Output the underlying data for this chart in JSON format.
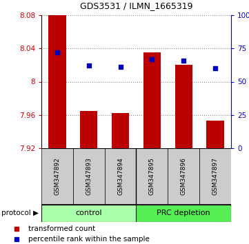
{
  "title": "GDS3531 / ILMN_1665319",
  "samples": [
    "GSM347892",
    "GSM347893",
    "GSM347894",
    "GSM347895",
    "GSM347896",
    "GSM347897"
  ],
  "bar_values": [
    8.08,
    7.965,
    7.962,
    8.035,
    8.02,
    7.953
  ],
  "bar_base": 7.92,
  "dot_values_pct": [
    72,
    62,
    61,
    67,
    66,
    60
  ],
  "ylim_left": [
    7.92,
    8.08
  ],
  "ylim_right": [
    0,
    100
  ],
  "yticks_left": [
    7.92,
    7.96,
    8.0,
    8.04,
    8.08
  ],
  "ytick_labels_left": [
    "7.92",
    "7.96",
    "8",
    "8.04",
    "8.08"
  ],
  "yticks_right": [
    0,
    25,
    50,
    75,
    100
  ],
  "ytick_labels_right": [
    "0",
    "25",
    "50",
    "75",
    "100%"
  ],
  "bar_color": "#bb0000",
  "dot_color": "#0000bb",
  "grid_color": "#555555",
  "control_label": "control",
  "prc_label": "PRC depletion",
  "control_color": "#aaffaa",
  "prc_color": "#55ee55",
  "protocol_label": "protocol",
  "legend_bar_label": "transformed count",
  "legend_dot_label": "percentile rank within the sample",
  "bar_width": 0.55,
  "left_axis_color": "#cc0000",
  "right_axis_color": "#0000cc"
}
